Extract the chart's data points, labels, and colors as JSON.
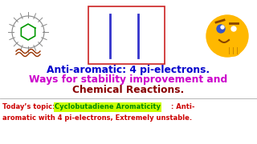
{
  "bg_color": "#ffffff",
  "title_line1": "Anti-aromatic: 4 pi-electrons.",
  "title_line1_color": "#0000cc",
  "title_line2": "Ways for stability improvement and",
  "title_line2_color": "#cc00cc",
  "title_line3": "Chemical Reactions.",
  "title_line3_color": "#880000",
  "bottom_prefix": "Today’s topic: ",
  "bottom_prefix_color": "#cc0000",
  "bottom_highlight": "Cyclobutadiene Aromaticity",
  "bottom_highlight_color": "#008800",
  "bottom_highlight_bg": "#ccff00",
  "bottom_suffix": ": Anti-",
  "bottom_suffix_color": "#cc0000",
  "bottom_line2": "aromatic with 4 pi-electrons, Extremely unstable.",
  "bottom_line2_color": "#cc0000",
  "box_edge_color": "#cc2222",
  "line_color": "#3333cc",
  "separator_color": "#aaaaaa",
  "mol_outer_color": "#888888",
  "mol_inner_color": "#009900",
  "mol_wave_color": "#993300",
  "emoji_face_color": "#FFB800",
  "emoji_eye_color": "#3355cc"
}
